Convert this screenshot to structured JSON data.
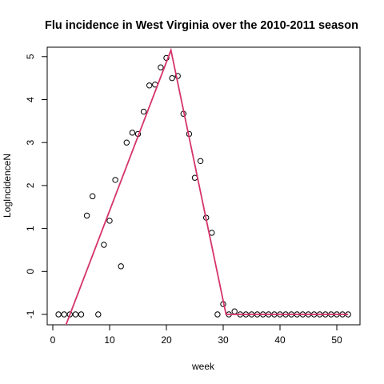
{
  "chart_data": {
    "type": "scatter",
    "title": "Flu incidence in West Virginia over the 2010-2011 season",
    "xlabel": "week",
    "ylabel": "LogIncidenceN",
    "xlim": [
      0,
      53
    ],
    "ylim": [
      -1.1,
      5.2
    ],
    "xticks": [
      0,
      10,
      20,
      30,
      40,
      50
    ],
    "yticks": [
      -1,
      0,
      1,
      2,
      3,
      4,
      5
    ],
    "grid": false,
    "points": [
      {
        "x": 1,
        "y": -1.0
      },
      {
        "x": 2,
        "y": -1.0
      },
      {
        "x": 3,
        "y": -1.0
      },
      {
        "x": 4,
        "y": -1.0
      },
      {
        "x": 5,
        "y": -1.0
      },
      {
        "x": 6,
        "y": 1.3
      },
      {
        "x": 7,
        "y": 1.75
      },
      {
        "x": 8,
        "y": -1.0
      },
      {
        "x": 9,
        "y": 0.62
      },
      {
        "x": 10,
        "y": 1.18
      },
      {
        "x": 11,
        "y": 2.13
      },
      {
        "x": 12,
        "y": 0.12
      },
      {
        "x": 13,
        "y": 3.0
      },
      {
        "x": 14,
        "y": 3.23
      },
      {
        "x": 15,
        "y": 3.2
      },
      {
        "x": 16,
        "y": 3.72
      },
      {
        "x": 17,
        "y": 4.33
      },
      {
        "x": 18,
        "y": 4.35
      },
      {
        "x": 19,
        "y": 4.75
      },
      {
        "x": 20,
        "y": 4.97
      },
      {
        "x": 21,
        "y": 4.5
      },
      {
        "x": 22,
        "y": 4.55
      },
      {
        "x": 23,
        "y": 3.67
      },
      {
        "x": 24,
        "y": 3.2
      },
      {
        "x": 25,
        "y": 2.18
      },
      {
        "x": 26,
        "y": 2.57
      },
      {
        "x": 27,
        "y": 1.25
      },
      {
        "x": 28,
        "y": 0.9
      },
      {
        "x": 29,
        "y": -1.0
      },
      {
        "x": 30,
        "y": -0.76
      },
      {
        "x": 31,
        "y": -1.0
      },
      {
        "x": 32,
        "y": -0.93
      },
      {
        "x": 33,
        "y": -1.0
      },
      {
        "x": 34,
        "y": -1.0
      },
      {
        "x": 35,
        "y": -1.0
      },
      {
        "x": 36,
        "y": -1.0
      },
      {
        "x": 37,
        "y": -1.0
      },
      {
        "x": 38,
        "y": -1.0
      },
      {
        "x": 39,
        "y": -1.0
      },
      {
        "x": 40,
        "y": -1.0
      },
      {
        "x": 41,
        "y": -1.0
      },
      {
        "x": 42,
        "y": -1.0
      },
      {
        "x": 43,
        "y": -1.0
      },
      {
        "x": 44,
        "y": -1.0
      },
      {
        "x": 45,
        "y": -1.0
      },
      {
        "x": 46,
        "y": -1.0
      },
      {
        "x": 47,
        "y": -1.0
      },
      {
        "x": 48,
        "y": -1.0
      },
      {
        "x": 49,
        "y": -1.0
      },
      {
        "x": 50,
        "y": -1.0
      },
      {
        "x": 51,
        "y": -1.0
      },
      {
        "x": 52,
        "y": -1.0
      }
    ],
    "fit_line": {
      "color": "#d6336c",
      "points": [
        {
          "x": 2.3,
          "y": -1.25
        },
        {
          "x": 20.8,
          "y": 5.15
        },
        {
          "x": 30.5,
          "y": -1.0
        },
        {
          "x": 52,
          "y": -1.0
        }
      ]
    }
  }
}
